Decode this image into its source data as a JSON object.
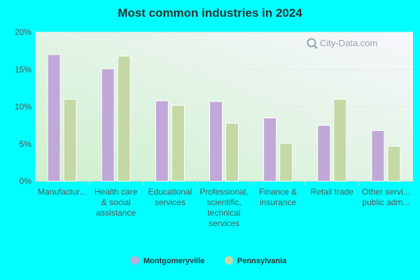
{
  "chart_data": {
    "type": "bar",
    "title": "Most common industries in 2024",
    "xlabel": "",
    "ylabel": "",
    "ylim": [
      0,
      20
    ],
    "yticks": [
      "0%",
      "5%",
      "10%",
      "15%",
      "20%"
    ],
    "yticks_values": [
      0,
      5,
      10,
      15,
      20
    ],
    "categories": [
      [
        "Manufactur..."
      ],
      [
        "Health care",
        "& social",
        "assistance"
      ],
      [
        "Educational",
        "services"
      ],
      [
        "Professional,",
        "scientific,",
        "technical",
        "services"
      ],
      [
        "Finance &",
        "insurance"
      ],
      [
        "Retail trade"
      ],
      [
        "Other servi...",
        "public adm..."
      ]
    ],
    "series": [
      {
        "name": "Montgomeryville",
        "color": "#c0a8d8",
        "values": [
          17.0,
          15.1,
          10.8,
          10.7,
          8.5,
          7.5,
          6.8
        ]
      },
      {
        "name": "Pennsylvania",
        "color": "#c4d9a6",
        "values": [
          11.0,
          16.8,
          10.2,
          7.8,
          5.1,
          11.0,
          4.7
        ]
      }
    ],
    "grid": true,
    "legend_position": "bottom"
  },
  "watermark": {
    "text": "City-Data.com",
    "icon": "magnifier-icon"
  }
}
